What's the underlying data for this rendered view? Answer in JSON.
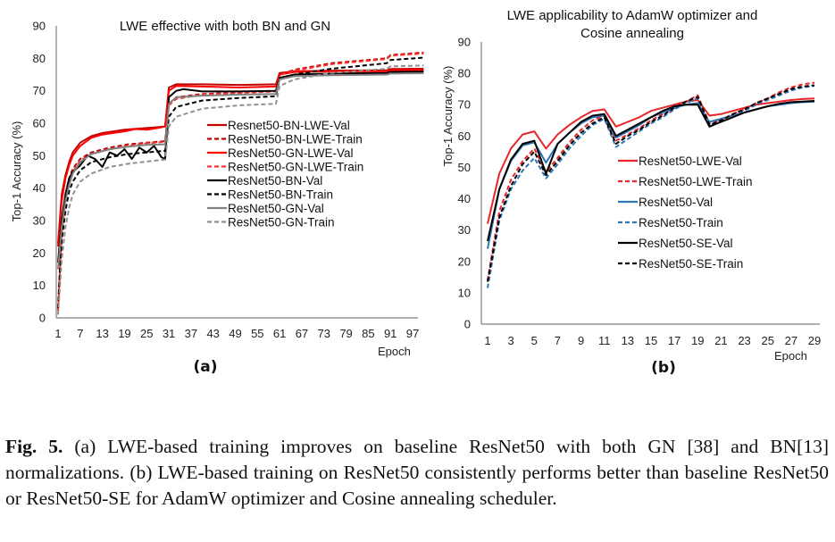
{
  "chart_data": [
    {
      "type": "line",
      "panel_label": "(a)",
      "title": "LWE effective with both BN and GN",
      "xlabel": "Epoch",
      "ylabel": "Top-1 Accuracy (%)",
      "ylim": [
        0,
        90
      ],
      "xlim": [
        1,
        100
      ],
      "yticks": [
        0,
        10,
        20,
        30,
        40,
        50,
        60,
        70,
        80,
        90
      ],
      "xticks": [
        1,
        7,
        13,
        19,
        25,
        31,
        37,
        43,
        49,
        55,
        61,
        67,
        73,
        79,
        85,
        91,
        97
      ],
      "grid": false,
      "legend_position": "center-right",
      "series": [
        {
          "name": "Resnet50-BN-LWE-Val",
          "color": "#c00000",
          "dash": false,
          "points": [
            [
              1,
              23
            ],
            [
              2,
              38
            ],
            [
              3,
              44
            ],
            [
              4,
              48
            ],
            [
              5,
              51
            ],
            [
              7,
              54
            ],
            [
              10,
              56
            ],
            [
              13,
              57
            ],
            [
              16,
              57.5
            ],
            [
              19,
              58
            ],
            [
              22,
              58.3
            ],
            [
              25,
              58.5
            ],
            [
              28,
              58.8
            ],
            [
              30,
              59
            ],
            [
              31,
              71
            ],
            [
              33,
              72
            ],
            [
              40,
              72
            ],
            [
              50,
              71.8
            ],
            [
              60,
              72
            ],
            [
              61,
              75.5
            ],
            [
              65,
              76
            ],
            [
              75,
              76.2
            ],
            [
              90,
              76.3
            ],
            [
              91,
              76.7
            ],
            [
              100,
              76.8
            ]
          ]
        },
        {
          "name": "ResNet50-BN-LWE-Train",
          "color": "#c00000",
          "dash": true,
          "points": [
            [
              1,
              3
            ],
            [
              2,
              28
            ],
            [
              3,
              38
            ],
            [
              4,
              43
            ],
            [
              5,
              46
            ],
            [
              7,
              49
            ],
            [
              10,
              51
            ],
            [
              15,
              52.5
            ],
            [
              20,
              53.5
            ],
            [
              25,
              54
            ],
            [
              30,
              54.5
            ],
            [
              31,
              66
            ],
            [
              33,
              68
            ],
            [
              40,
              69
            ],
            [
              50,
              69.5
            ],
            [
              60,
              70
            ],
            [
              61,
              75
            ],
            [
              65,
              76.5
            ],
            [
              75,
              78.5
            ],
            [
              90,
              80
            ],
            [
              91,
              81
            ],
            [
              100,
              81.8
            ]
          ]
        },
        {
          "name": "ResNet50-GN-LWE-Val",
          "color": "#ff0000",
          "dash": false,
          "points": [
            [
              1,
              22
            ],
            [
              2,
              36
            ],
            [
              3,
              43
            ],
            [
              4,
              47
            ],
            [
              5,
              50
            ],
            [
              7,
              53
            ],
            [
              10,
              55.5
            ],
            [
              13,
              56.5
            ],
            [
              16,
              57
            ],
            [
              19,
              57.5
            ],
            [
              22,
              58.2
            ],
            [
              25,
              58
            ],
            [
              28,
              58.5
            ],
            [
              30,
              59
            ],
            [
              31,
              70
            ],
            [
              33,
              71.5
            ],
            [
              40,
              71.3
            ],
            [
              50,
              71
            ],
            [
              60,
              71.3
            ],
            [
              61,
              75
            ],
            [
              65,
              75.8
            ],
            [
              75,
              76
            ],
            [
              90,
              76
            ],
            [
              91,
              76.3
            ],
            [
              100,
              76.4
            ]
          ]
        },
        {
          "name": "ResNet50-GN-LWE-Train",
          "color": "#ff3030",
          "dash": true,
          "points": [
            [
              1,
              2
            ],
            [
              2,
              26
            ],
            [
              3,
              36
            ],
            [
              4,
              42
            ],
            [
              5,
              45
            ],
            [
              7,
              48.5
            ],
            [
              10,
              50.5
            ],
            [
              15,
              52
            ],
            [
              20,
              53
            ],
            [
              25,
              53.8
            ],
            [
              30,
              54.3
            ],
            [
              31,
              65.5
            ],
            [
              33,
              67.5
            ],
            [
              40,
              68.8
            ],
            [
              50,
              69.3
            ],
            [
              60,
              69.8
            ],
            [
              61,
              74.8
            ],
            [
              65,
              76.2
            ],
            [
              75,
              78.2
            ],
            [
              90,
              79.8
            ],
            [
              91,
              80.8
            ],
            [
              100,
              81.5
            ]
          ]
        },
        {
          "name": "ResNet50-BN-Val",
          "color": "#000000",
          "dash": false,
          "points": [
            [
              1,
              17
            ],
            [
              2,
              30
            ],
            [
              3,
              38
            ],
            [
              4,
              43
            ],
            [
              5,
              45
            ],
            [
              7,
              47
            ],
            [
              9,
              50
            ],
            [
              11,
              49
            ],
            [
              13,
              46.5
            ],
            [
              15,
              51
            ],
            [
              17,
              50
            ],
            [
              19,
              52
            ],
            [
              21,
              49
            ],
            [
              23,
              52.5
            ],
            [
              25,
              51
            ],
            [
              27,
              53
            ],
            [
              29,
              49.5
            ],
            [
              30,
              49
            ],
            [
              31,
              68
            ],
            [
              33,
              70
            ],
            [
              35,
              70.5
            ],
            [
              40,
              69.8
            ],
            [
              50,
              69.8
            ],
            [
              60,
              70
            ],
            [
              61,
              74
            ],
            [
              65,
              75
            ],
            [
              75,
              75.3
            ],
            [
              90,
              75.5
            ],
            [
              91,
              75.8
            ],
            [
              100,
              75.9
            ]
          ]
        },
        {
          "name": "ResNet50-BN-Train",
          "color": "#000000",
          "dash": true,
          "points": [
            [
              1,
              3
            ],
            [
              2,
              24
            ],
            [
              3,
              33
            ],
            [
              4,
              39
            ],
            [
              5,
              42
            ],
            [
              7,
              45.5
            ],
            [
              10,
              48
            ],
            [
              15,
              49.5
            ],
            [
              20,
              50.5
            ],
            [
              25,
              51
            ],
            [
              30,
              51.5
            ],
            [
              31,
              62
            ],
            [
              33,
              65
            ],
            [
              40,
              67
            ],
            [
              50,
              67.8
            ],
            [
              60,
              68.3
            ],
            [
              61,
              73.5
            ],
            [
              65,
              75
            ],
            [
              75,
              76.8
            ],
            [
              90,
              78.5
            ],
            [
              91,
              79.5
            ],
            [
              100,
              80.2
            ]
          ]
        },
        {
          "name": "ResNet50-GN-Val",
          "color": "#808080",
          "dash": false,
          "points": [
            [
              1,
              15
            ],
            [
              2,
              28
            ],
            [
              3,
              36
            ],
            [
              4,
              41
            ],
            [
              5,
              44.5
            ],
            [
              7,
              48
            ],
            [
              10,
              50.5
            ],
            [
              15,
              52
            ],
            [
              20,
              52.8
            ],
            [
              25,
              53.3
            ],
            [
              30,
              53.5
            ],
            [
              31,
              66
            ],
            [
              33,
              68
            ],
            [
              40,
              68.5
            ],
            [
              50,
              68.8
            ],
            [
              60,
              69
            ],
            [
              61,
              73.5
            ],
            [
              65,
              74.5
            ],
            [
              75,
              74.8
            ],
            [
              90,
              75
            ],
            [
              91,
              75.3
            ],
            [
              100,
              75.4
            ]
          ]
        },
        {
          "name": "ResNet50-GN-Train",
          "color": "#909090",
          "dash": true,
          "points": [
            [
              1,
              1
            ],
            [
              2,
              18
            ],
            [
              3,
              28
            ],
            [
              4,
              34
            ],
            [
              5,
              38
            ],
            [
              7,
              42
            ],
            [
              10,
              44.5
            ],
            [
              15,
              46.5
            ],
            [
              20,
              47.5
            ],
            [
              25,
              48.2
            ],
            [
              30,
              48.8
            ],
            [
              31,
              59
            ],
            [
              33,
              62
            ],
            [
              40,
              64.5
            ],
            [
              50,
              65.5
            ],
            [
              60,
              66
            ],
            [
              61,
              71.5
            ],
            [
              65,
              73.5
            ],
            [
              75,
              75.5
            ],
            [
              90,
              76.8
            ],
            [
              91,
              77.5
            ],
            [
              100,
              77.8
            ]
          ]
        }
      ]
    },
    {
      "type": "line",
      "panel_label": "(b)",
      "title": "LWE applicability to AdamW optimizer and Cosine annealing",
      "title_lines": [
        "LWE applicability to AdamW optimizer and",
        "Cosine annealing"
      ],
      "xlabel": "Epoch",
      "ylabel": "Top-1 Accuracy (%)",
      "ylim": [
        0,
        90
      ],
      "xlim": [
        1,
        29
      ],
      "yticks": [
        0,
        10,
        20,
        30,
        40,
        50,
        60,
        70,
        80,
        90
      ],
      "xticks": [
        1,
        3,
        5,
        7,
        9,
        11,
        13,
        15,
        17,
        19,
        21,
        23,
        25,
        27,
        29
      ],
      "grid": false,
      "legend_position": "center-right",
      "x": [
        1,
        2,
        3,
        4,
        5,
        6,
        7,
        8,
        9,
        10,
        11,
        12,
        13,
        14,
        15,
        16,
        17,
        18,
        19,
        20,
        21,
        22,
        23,
        24,
        25,
        26,
        27,
        28,
        29
      ],
      "series": [
        {
          "name": "ResNet50-LWE-Val",
          "color": "#e8262a",
          "dash": false,
          "values": [
            32,
            48,
            56,
            60.5,
            61.5,
            56,
            60.5,
            63.5,
            66,
            68,
            68.5,
            63,
            64.5,
            66,
            68,
            69,
            70,
            71,
            71.5,
            66.5,
            67,
            68,
            69,
            70,
            70.5,
            71,
            71.5,
            71.8,
            72
          ]
        },
        {
          "name": "ResNet50-LWE-Train",
          "color": "#e8262a",
          "dash": true,
          "values": [
            14,
            36,
            46,
            52,
            56,
            48.5,
            53,
            58,
            62,
            65,
            66.5,
            58.5,
            60.5,
            62.5,
            65,
            67,
            69,
            71,
            73,
            64,
            65,
            67,
            68.5,
            70.5,
            72,
            74,
            75.5,
            76.5,
            77
          ]
        },
        {
          "name": "ResNet50-Val",
          "color": "#2e75b6",
          "dash": false,
          "values": [
            24,
            43,
            52,
            57,
            58,
            51.5,
            57.5,
            61,
            64,
            66,
            66.5,
            59.5,
            61.5,
            63.5,
            66,
            67.5,
            69,
            70,
            70.5,
            64.5,
            65.5,
            66.5,
            67.5,
            68.5,
            69.5,
            70,
            70.5,
            70.8,
            71
          ]
        },
        {
          "name": "ResNet50-Train",
          "color": "#2e75b6",
          "dash": true,
          "values": [
            11.5,
            33,
            43,
            49,
            53,
            46.5,
            51,
            56,
            60,
            63.5,
            65.5,
            56.5,
            59,
            61.5,
            64,
            66,
            68.5,
            70.5,
            72,
            63.5,
            64.5,
            66,
            68,
            70,
            71.5,
            73,
            74.5,
            75.5,
            76
          ]
        },
        {
          "name": "ResNet50-SE-Val",
          "color": "#000000",
          "dash": false,
          "values": [
            26.5,
            43,
            52.5,
            57.5,
            58.5,
            48,
            57.5,
            61,
            64.5,
            66.5,
            67,
            60,
            62,
            64,
            66,
            68,
            69.5,
            70,
            70,
            63,
            64.5,
            66,
            67.5,
            68.5,
            69.5,
            70.3,
            70.8,
            71,
            71.2
          ]
        },
        {
          "name": "ResNet50-SE-Train",
          "color": "#000000",
          "dash": true,
          "values": [
            13.5,
            34,
            44,
            51,
            55,
            47.5,
            52,
            57,
            61,
            64,
            66,
            57.5,
            60,
            62,
            64.5,
            66.5,
            69,
            71,
            72.5,
            63.5,
            65,
            67,
            68.5,
            70.5,
            72,
            73.5,
            75,
            75.8,
            76.2
          ]
        }
      ]
    }
  ],
  "caption": {
    "label": "Fig. 5.",
    "text": " (a) LWE-based training improves on baseline ResNet50 with both GN [38] and BN[13] normalizations. (b) LWE-based training on ResNet50 consistently performs better than baseline ResNet50 or ResNet50-SE for AdamW optimizer and Cosine annealing scheduler."
  }
}
